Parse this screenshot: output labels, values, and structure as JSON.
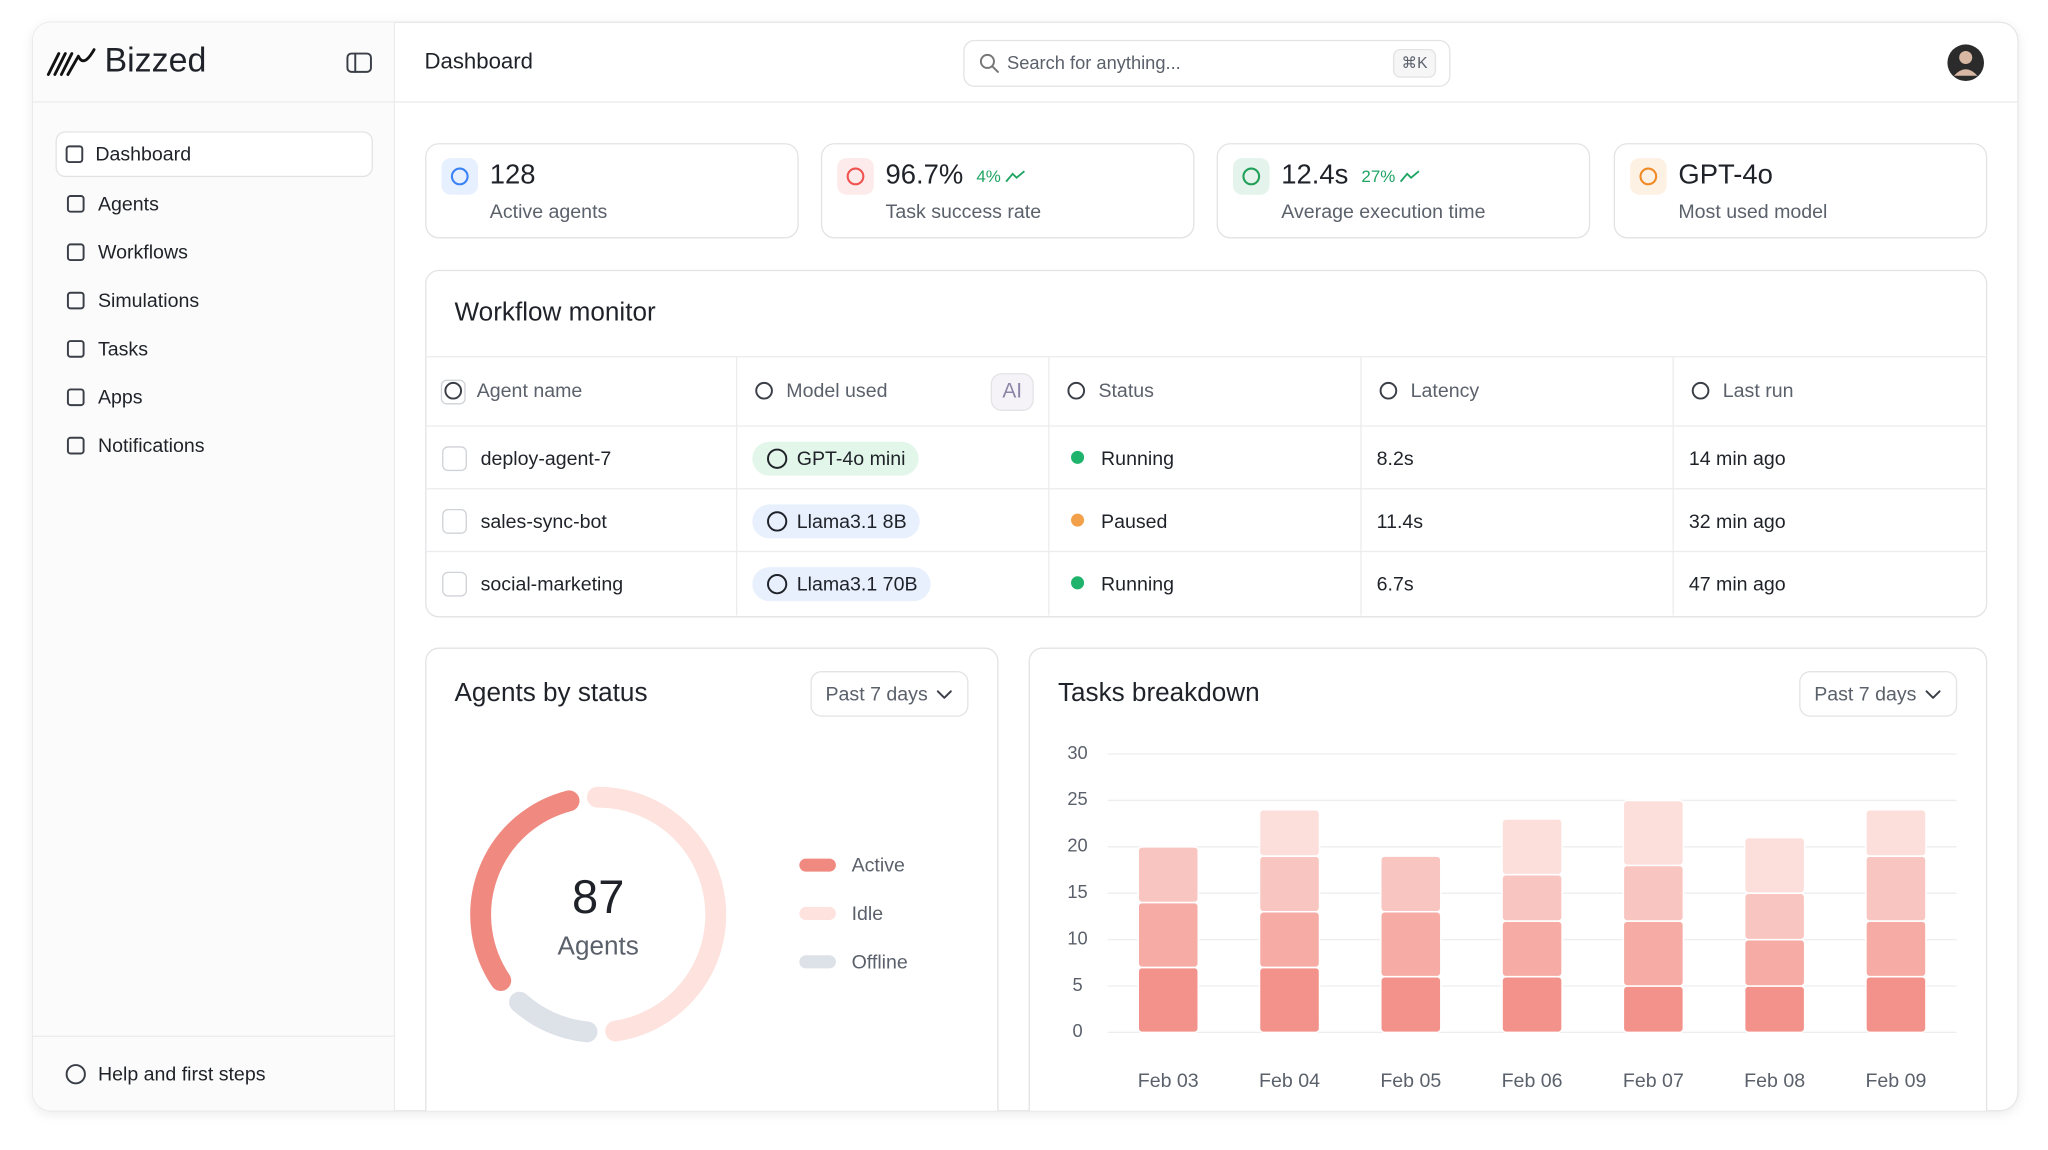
{
  "brand": "Bizzed",
  "sidebar": {
    "nav": [
      "Dashboard",
      "Agents",
      "Workflows",
      "Simulations",
      "Tasks",
      "Apps",
      "Notifications"
    ],
    "help": "Help and first steps"
  },
  "header": {
    "title": "Dashboard",
    "search_placeholder": "Search for anything...",
    "shortcut": "⌘K"
  },
  "stats": [
    {
      "value": "128",
      "label": "Active agents",
      "color": "#3b82f6"
    },
    {
      "value": "96.7%",
      "change": "4%",
      "label": "Task success rate",
      "color": "#ef5350"
    },
    {
      "value": "12.4s",
      "change": "27%",
      "label": "Average execution time",
      "color": "#22a05a"
    },
    {
      "value": "GPT-4o",
      "label": "Most used model",
      "color": "#f08a24"
    }
  ],
  "table": {
    "title": "Workflow monitor",
    "ai_badge": "AI",
    "columns": [
      "Agent name",
      "Model used",
      "Status",
      "Latency",
      "Last run"
    ],
    "rows": [
      {
        "agent": "deploy-agent-7",
        "model": "GPT-4o mini",
        "badge_color": "#e3f6ea",
        "status": "Running",
        "status_color": "#1fb36b",
        "latency": "8.2s",
        "last_run": "14 min ago"
      },
      {
        "agent": "sales-sync-bot",
        "model": "Llama3.1 8B",
        "badge_color": "#e8f0fd",
        "status": "Paused",
        "status_color": "#f2a14a",
        "latency": "11.4s",
        "last_run": "32 min ago"
      },
      {
        "agent": "social-marketing",
        "model": "Llama3.1 70B",
        "badge_color": "#e8f0fd",
        "status": "Running",
        "status_color": "#1fb36b",
        "latency": "6.7s",
        "last_run": "47 min ago"
      }
    ]
  },
  "chart_data": [
    {
      "type": "donut",
      "title": "Agents by status",
      "filter": "Past 7 days",
      "center_value": 87,
      "center_label": "Agents",
      "categories": [
        "Active",
        "Idle",
        "Offline"
      ],
      "values": [
        30,
        47,
        10
      ],
      "colors": [
        "#f08a80",
        "#fde2de",
        "#dde1e8"
      ]
    },
    {
      "type": "stacked_bar",
      "title": "Tasks breakdown",
      "filter": "Past 7 days",
      "categories": [
        "Feb 03",
        "Feb 04",
        "Feb 05",
        "Feb 06",
        "Feb 07",
        "Feb 08",
        "Feb 09"
      ],
      "series": [
        {
          "color": "#f3928a",
          "values": [
            7,
            7,
            6,
            6,
            5,
            5,
            6
          ]
        },
        {
          "color": "#f6aba4",
          "values": [
            7,
            6,
            7,
            6,
            7,
            5,
            6
          ]
        },
        {
          "color": "#f9c5c0",
          "values": [
            6,
            6,
            6,
            5,
            6,
            5,
            7
          ]
        },
        {
          "color": "#fcdedb",
          "values": [
            0,
            5,
            0,
            6,
            7,
            6,
            5
          ]
        }
      ],
      "ylim": [
        0,
        30
      ],
      "yticks": [
        0,
        5,
        10,
        15,
        20,
        25,
        30
      ],
      "grid": true
    }
  ]
}
